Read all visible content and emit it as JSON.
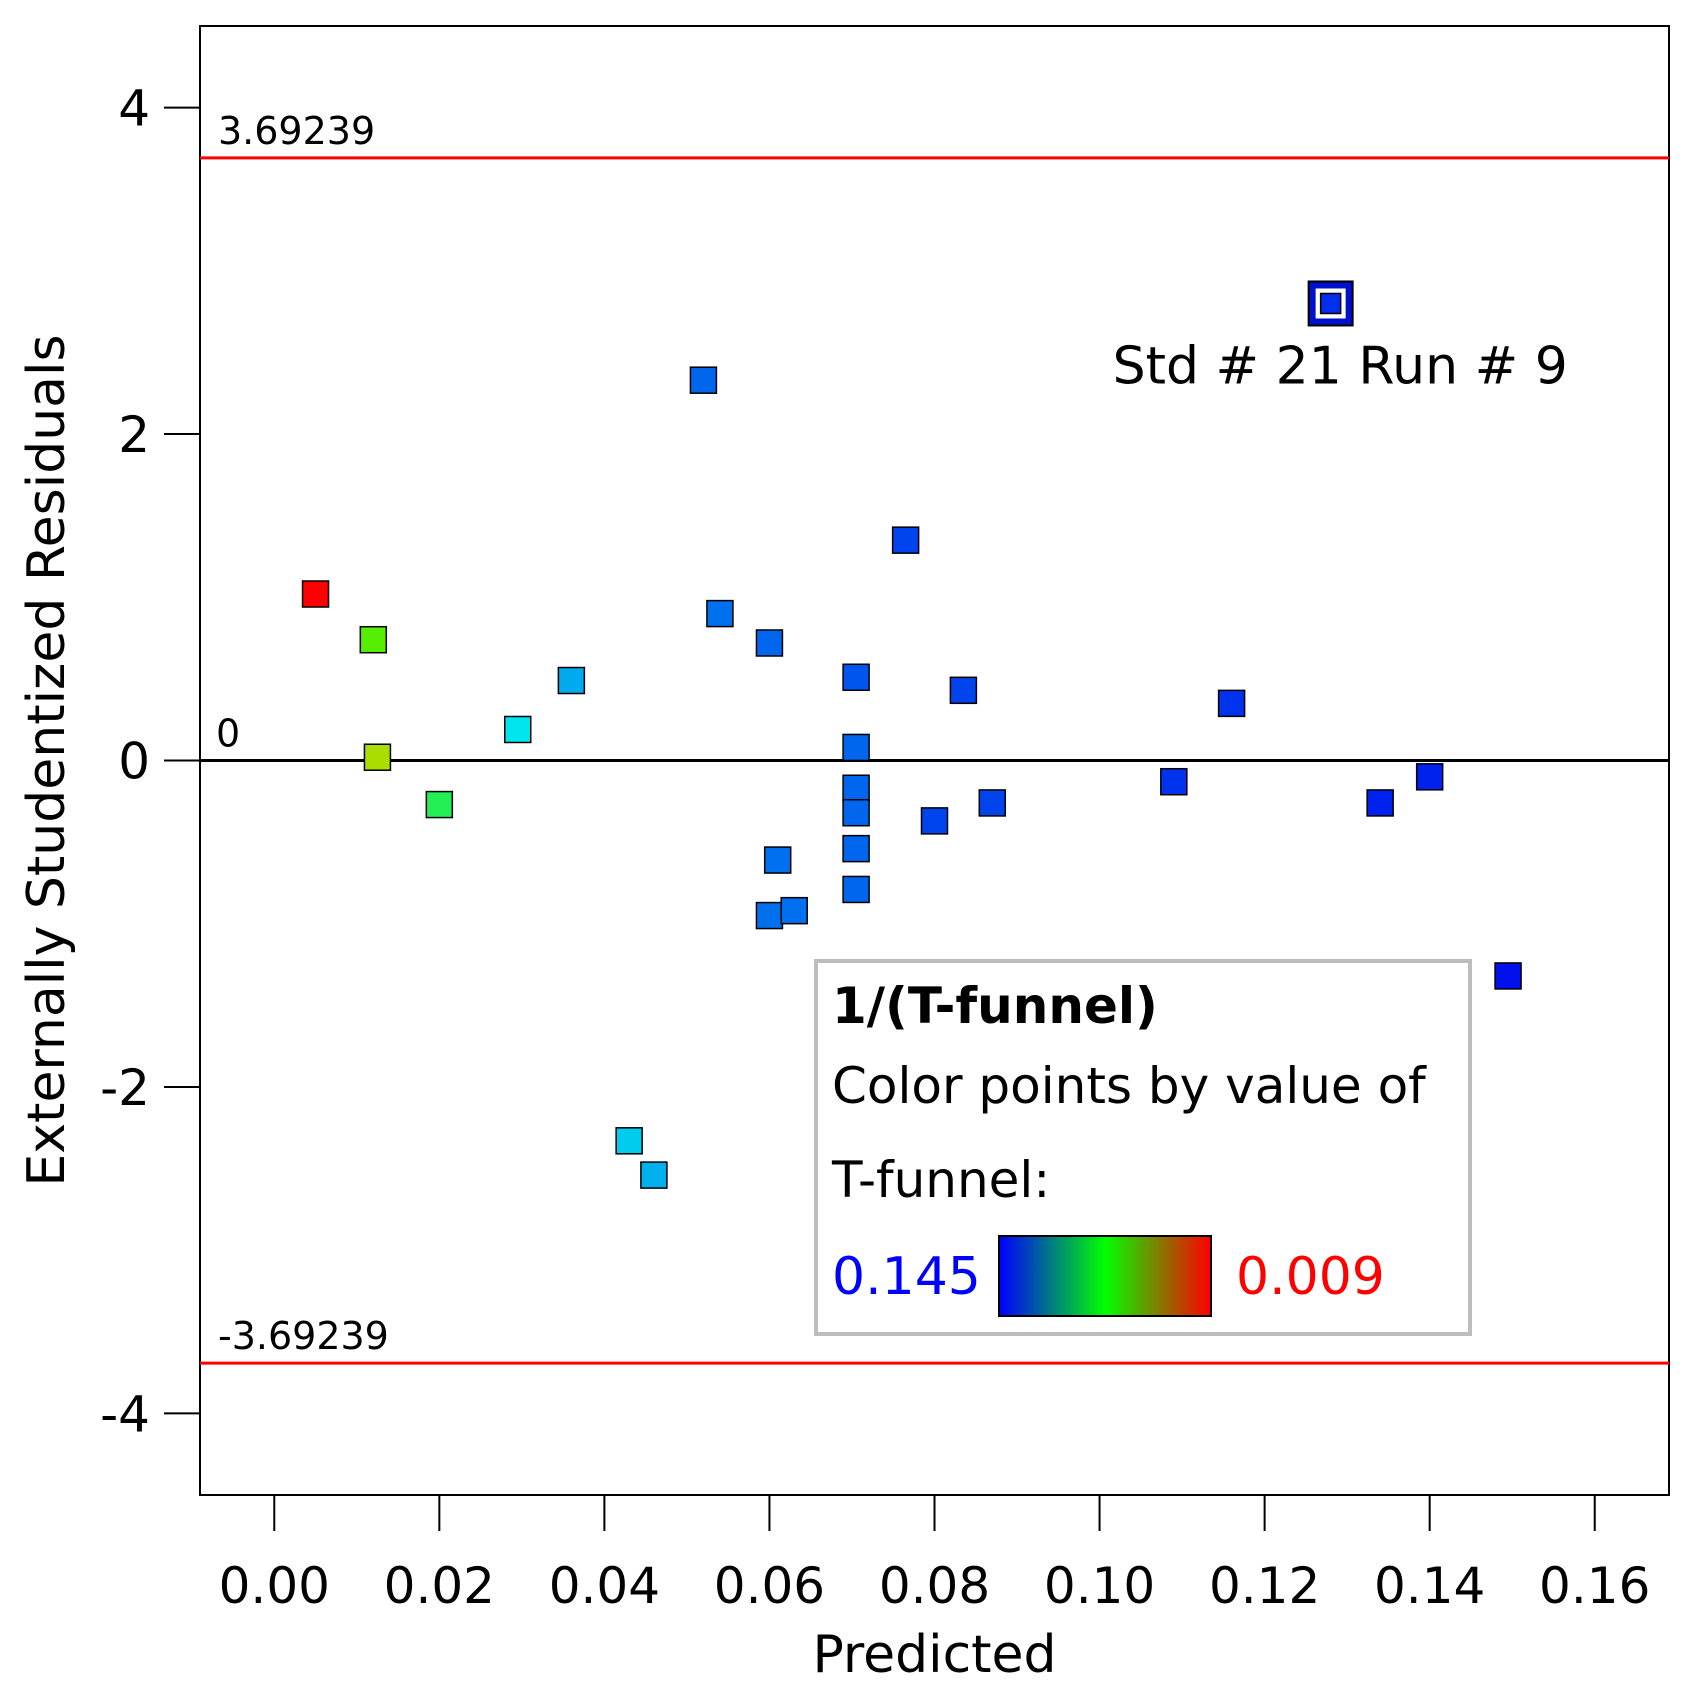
{
  "chart_data": {
    "type": "scatter",
    "xlabel": "Predicted",
    "ylabel": "Externally Studentized Residuals",
    "xlim": [
      -0.009,
      0.169
    ],
    "ylim": [
      -4.5,
      4.5
    ],
    "xticks": [
      "0.00",
      "0.02",
      "0.04",
      "0.06",
      "0.08",
      "0.10",
      "0.12",
      "0.14",
      "0.16"
    ],
    "yticks": [
      "4",
      "2",
      "0",
      "-2",
      "-4"
    ],
    "upper_limit": {
      "value": 3.69239,
      "label": "3.69239",
      "color": "#ff0000"
    },
    "lower_limit": {
      "value": -3.69239,
      "label": "-3.69239",
      "color": "#ff0000"
    },
    "zero_line": {
      "value": 0,
      "label": "0"
    },
    "highlight": {
      "x": 0.128,
      "y": 2.8,
      "label": "Std # 21 Run # 9"
    },
    "points": [
      {
        "x": 0.005,
        "y": 1.02,
        "color": "#ff0000"
      },
      {
        "x": 0.012,
        "y": 0.74,
        "color": "#55ee00"
      },
      {
        "x": 0.0125,
        "y": 0.02,
        "color": "#aadd00"
      },
      {
        "x": 0.02,
        "y": -0.27,
        "color": "#22ee55"
      },
      {
        "x": 0.0295,
        "y": 0.19,
        "color": "#00e5ee"
      },
      {
        "x": 0.036,
        "y": 0.49,
        "color": "#00aaee"
      },
      {
        "x": 0.043,
        "y": -2.33,
        "color": "#00ccee"
      },
      {
        "x": 0.046,
        "y": -2.54,
        "color": "#00b0ee"
      },
      {
        "x": 0.052,
        "y": 2.33,
        "color": "#0066ee"
      },
      {
        "x": 0.054,
        "y": 0.9,
        "color": "#0070ee"
      },
      {
        "x": 0.06,
        "y": 0.72,
        "color": "#0066ee"
      },
      {
        "x": 0.061,
        "y": -0.61,
        "color": "#0070ee"
      },
      {
        "x": 0.06,
        "y": -0.95,
        "color": "#0070ee"
      },
      {
        "x": 0.063,
        "y": -0.92,
        "color": "#0070ee"
      },
      {
        "x": 0.0705,
        "y": 0.51,
        "color": "#0055ee"
      },
      {
        "x": 0.0705,
        "y": 0.08,
        "color": "#0066ee"
      },
      {
        "x": 0.0705,
        "y": -0.17,
        "color": "#0066ee"
      },
      {
        "x": 0.0705,
        "y": -0.32,
        "color": "#0066ee"
      },
      {
        "x": 0.0705,
        "y": -0.54,
        "color": "#0066ee"
      },
      {
        "x": 0.0705,
        "y": -0.79,
        "color": "#0066ee"
      },
      {
        "x": 0.0765,
        "y": 1.35,
        "color": "#0044ee"
      },
      {
        "x": 0.08,
        "y": -0.37,
        "color": "#0044ee"
      },
      {
        "x": 0.0835,
        "y": 0.43,
        "color": "#0044ee"
      },
      {
        "x": 0.087,
        "y": -0.26,
        "color": "#0044ee"
      },
      {
        "x": 0.109,
        "y": -0.13,
        "color": "#0033ee"
      },
      {
        "x": 0.116,
        "y": 0.35,
        "color": "#0033ee"
      },
      {
        "x": 0.134,
        "y": -0.26,
        "color": "#0022ee"
      },
      {
        "x": 0.14,
        "y": -0.1,
        "color": "#0022ee"
      },
      {
        "x": 0.1495,
        "y": -1.32,
        "color": "#0011ee"
      }
    ]
  },
  "legend": {
    "title": "1/(T-funnel)",
    "line1": "Color points by value of",
    "line2": "T-funnel:",
    "low_value": "0.145",
    "high_value": "0.009",
    "low_color": "#0000ff",
    "high_color": "#ff0000"
  }
}
